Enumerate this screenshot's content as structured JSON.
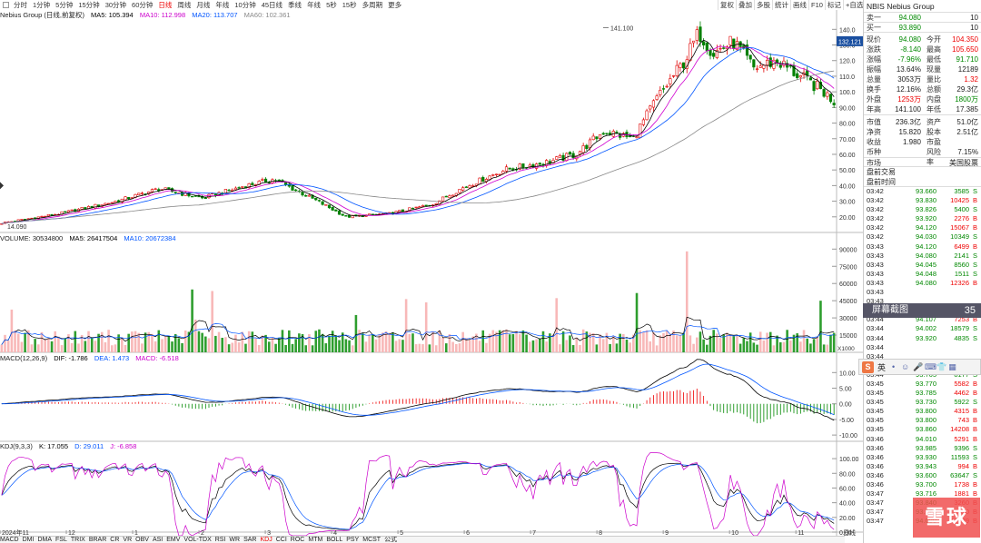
{
  "period_bar": {
    "items": [
      "分时",
      "1分钟",
      "5分钟",
      "15分钟",
      "30分钟",
      "60分钟",
      "日线",
      "周线",
      "月线",
      "年线",
      "10分钟",
      "45日线",
      "季线",
      "年线",
      "5秒",
      "15秒",
      "多周期",
      "更多"
    ],
    "active_index": 6
  },
  "right_tools": [
    "复权",
    "叠加",
    "多股",
    "统计",
    "画线",
    "F10",
    "标记",
    "+自选",
    "返回"
  ],
  "main_legend": {
    "name": "Nebius Group (日线,前复权)",
    "ma5": "MA5: 105.394",
    "ma10": "MA10: 112.998",
    "ma20": "MA20: 113.707",
    "ma60": "MA60: 102.361"
  },
  "price_axis": {
    "ticks": [
      "140.0",
      "130.0",
      "120.0",
      "110.0",
      "100.0",
      "90.00",
      "80.00",
      "70.00",
      "60.00",
      "50.00",
      "40.00",
      "30.00",
      "20.00"
    ],
    "current": "132.121",
    "high_label": "141.100",
    "low_label": "14.090"
  },
  "volume_legend": {
    "vol": "VOLUME: 30534800",
    "ma5": "MA5: 26417504",
    "ma10": "MA10: 20672384"
  },
  "volume_axis": {
    "ticks": [
      "90000",
      "75000",
      "60000",
      "45000",
      "30000",
      "15000"
    ],
    "unit": "X1000"
  },
  "macd_legend": {
    "name": "MACD(12,26,9)",
    "dif": "DIF: -1.786",
    "dea": "DEA: 1.473",
    "macd": "MACD: -6.518"
  },
  "macd_axis": {
    "ticks": [
      "10.00",
      "5.00",
      "0.00",
      "-5.00",
      "-10.00"
    ]
  },
  "kdj_legend": {
    "name": "KDJ(9,3,3)",
    "k": "K: 17.055",
    "d": "D: 29.011",
    "j": "J: -6.858"
  },
  "kdj_axis": {
    "ticks": [
      "100.00",
      "80.00",
      "60.00",
      "40.00",
      "20.00",
      "0.00"
    ]
  },
  "x_axis": {
    "labels": [
      "2024年11",
      "12",
      "1",
      "2",
      "3",
      "4",
      "5",
      "6",
      "7",
      "8",
      "9",
      "10",
      "11"
    ],
    "right": "日线"
  },
  "bottom_tabs": [
    "MACD",
    "DMI",
    "DMA",
    "FSL",
    "TRIX",
    "BRAR",
    "CR",
    "VR",
    "OBV",
    "ASI",
    "EMV",
    "VOL-TDX",
    "RSI",
    "WR",
    "SAR",
    "KDJ",
    "CCI",
    "ROC",
    "MTM",
    "BOLL",
    "PSY",
    "MCST",
    "公式"
  ],
  "bottom_active": "KDJ",
  "bottom_right": [
    "窗口数",
    "指标",
    "模板"
  ],
  "quote": {
    "title": "NBIS Nebius Group",
    "ask": {
      "label": "卖一",
      "price": "94.080",
      "vol": "10"
    },
    "bid": {
      "label": "买一",
      "price": "93.890",
      "vol": "10"
    },
    "rows": [
      {
        "l1": "现价",
        "v1": "94.080",
        "c1": "green",
        "l2": "今开",
        "v2": "104.350",
        "c2": "red"
      },
      {
        "l1": "涨跌",
        "v1": "-8.140",
        "c1": "green",
        "l2": "最高",
        "v2": "105.650",
        "c2": "red"
      },
      {
        "l1": "涨幅",
        "v1": "-7.96%",
        "c1": "green",
        "l2": "最低",
        "v2": "91.710",
        "c2": "green"
      },
      {
        "l1": "振幅",
        "v1": "13.64%",
        "c1": "",
        "l2": "现量",
        "v2": "12189",
        "c2": ""
      },
      {
        "l1": "总量",
        "v1": "3053万",
        "c1": "",
        "l2": "量比",
        "v2": "1.32",
        "c2": "red"
      },
      {
        "l1": "换手",
        "v1": "12.16%",
        "c1": "",
        "l2": "总额",
        "v2": "29.3亿",
        "c2": ""
      },
      {
        "l1": "外盘",
        "v1": "1253万",
        "c1": "red",
        "l2": "内盘",
        "v2": "1800万",
        "c2": "green"
      },
      {
        "l1": "年高",
        "v1": "141.100",
        "c1": "",
        "l2": "年低",
        "v2": "17.385",
        "c2": ""
      }
    ],
    "rows2": [
      {
        "l1": "市值",
        "v1": "236.3亿",
        "l2": "资产",
        "v2": "51.0亿"
      },
      {
        "l1": "净资",
        "v1": "15.820",
        "l2": "股本",
        "v2": "2.51亿"
      },
      {
        "l1": "收益",
        "v1": "1.980",
        "l2": "市盈",
        "v2": ""
      },
      {
        "l1": "币种",
        "v1": "",
        "l2": "风险率",
        "v2": "7.15%"
      }
    ],
    "market": {
      "label": "市场",
      "value": "美国股票"
    },
    "trade_label": "盘前交易",
    "trade_time": "盘前时间",
    "ticks": [
      [
        "03:42",
        "93.660",
        "3585",
        "S"
      ],
      [
        "03:42",
        "93.830",
        "10425",
        "B"
      ],
      [
        "03:42",
        "93.826",
        "5400",
        "S"
      ],
      [
        "03:42",
        "93.920",
        "2276",
        "B"
      ],
      [
        "03:42",
        "94.120",
        "15067",
        "B"
      ],
      [
        "03:42",
        "94.030",
        "10349",
        "S"
      ],
      [
        "03:43",
        "94.120",
        "6499",
        "B"
      ],
      [
        "03:43",
        "94.080",
        "2141",
        "S"
      ],
      [
        "03:43",
        "94.045",
        "8560",
        "S"
      ],
      [
        "03:43",
        "94.048",
        "1511",
        "S"
      ],
      [
        "03:43",
        "94.080",
        "12326",
        "B"
      ],
      [
        "03:43",
        "",
        "",
        ""
      ],
      [
        "03:43",
        "",
        "",
        ""
      ],
      [
        "03:44",
        "94.100",
        "9405",
        "S"
      ],
      [
        "03:44",
        "94.107",
        "7253",
        "B"
      ],
      [
        "03:44",
        "94.002",
        "18579",
        "S"
      ],
      [
        "03:44",
        "93.920",
        "4835",
        "S"
      ],
      [
        "03:44",
        "",
        "",
        ""
      ],
      [
        "03:44",
        "",
        "",
        ""
      ],
      [
        "03:44",
        "93.828",
        "5136",
        "B"
      ],
      [
        "03:44",
        "93.765",
        "8177",
        "S"
      ],
      [
        "03:45",
        "93.770",
        "5582",
        "B"
      ],
      [
        "03:45",
        "93.785",
        "4462",
        "B"
      ],
      [
        "03:45",
        "93.730",
        "5922",
        "S"
      ],
      [
        "03:45",
        "93.800",
        "4315",
        "B"
      ],
      [
        "03:45",
        "93.800",
        "743",
        "B"
      ],
      [
        "03:45",
        "93.860",
        "14208",
        "B"
      ],
      [
        "03:46",
        "94.010",
        "5291",
        "B"
      ],
      [
        "03:46",
        "93.985",
        "9396",
        "S"
      ],
      [
        "03:46",
        "93.930",
        "11593",
        "S"
      ],
      [
        "03:46",
        "93.943",
        "994",
        "B"
      ],
      [
        "03:46",
        "93.600",
        "63647",
        "S"
      ],
      [
        "03:46",
        "93.700",
        "1738",
        "B"
      ],
      [
        "03:47",
        "93.716",
        "1881",
        "B"
      ],
      [
        "03:47",
        "93.840",
        "3260",
        "B"
      ],
      [
        "03:47",
        "93.775",
        "1610",
        "B"
      ],
      [
        "03:47",
        "94.080",
        "12189",
        "B"
      ]
    ]
  },
  "screenshot_bar": {
    "label": "屏幕截图",
    "value": "35"
  },
  "ime": {
    "logo": "S",
    "lang": "英"
  },
  "watermark": "雪球",
  "colors": {
    "up": "#e00000",
    "down": "#008000",
    "ma5": "#000000",
    "ma10": "#d000d0",
    "ma20": "#0055ff",
    "ma60": "#888888"
  }
}
